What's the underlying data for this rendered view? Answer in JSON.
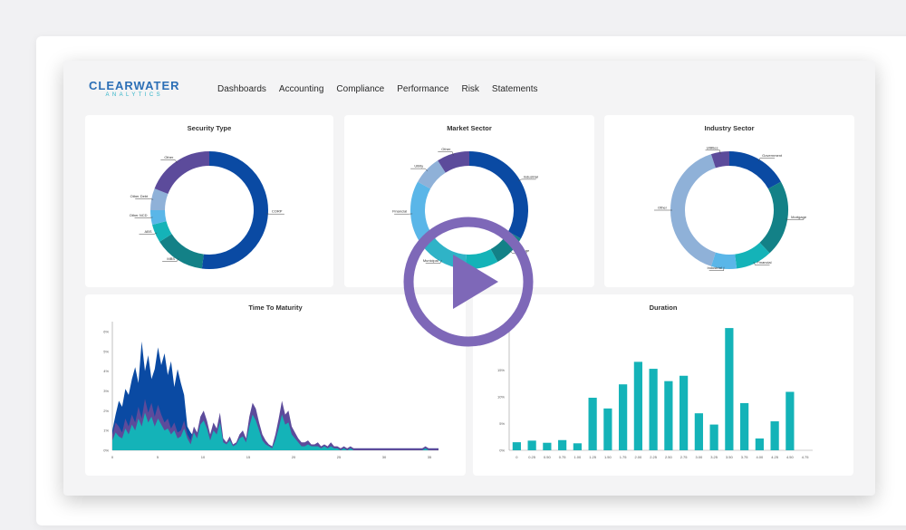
{
  "app": {
    "logo_main": "CLEARWATER",
    "logo_sub": "ANALYTICS"
  },
  "nav": {
    "items": [
      "Dashboards",
      "Accounting",
      "Compliance",
      "Performance",
      "Risk",
      "Statements"
    ]
  },
  "colors": {
    "dark_blue": "#0a4aa3",
    "teal_dark": "#138187",
    "teal": "#14b3b8",
    "light_blue": "#5ab6e8",
    "pale_blue": "#8fb1d8",
    "purple": "#5c4b9b",
    "play": "#7e68b8"
  },
  "chart_data": [
    {
      "type": "pie",
      "title": "Security Type",
      "labels": [
        "CORP",
        "MBS",
        "ABS",
        "Other NCD",
        "Other Debt",
        "Other"
      ],
      "values": [
        52,
        14,
        5,
        4,
        6,
        19
      ],
      "colors": [
        "#0a4aa3",
        "#138187",
        "#14b3b8",
        "#5ab6e8",
        "#8fb1d8",
        "#5c4b9b"
      ]
    },
    {
      "type": "pie",
      "title": "Market Sector",
      "labels": [
        "Industrial",
        "Mortgage",
        "",
        "Municipal",
        "Financial",
        "Utility",
        "Other"
      ],
      "values": [
        33,
        9,
        9,
        14,
        18,
        8,
        9
      ],
      "colors": [
        "#0a4aa3",
        "#138187",
        "#14b3b8",
        "#2fb3c7",
        "#5ab6e8",
        "#8fb1d8",
        "#5c4b9b"
      ]
    },
    {
      "type": "pie",
      "title": "Industry Sector",
      "labels": [
        "Government",
        "Mortgage",
        "Financial",
        "Industrial",
        "Other",
        "Utilities"
      ],
      "values": [
        17,
        21,
        10,
        7,
        40,
        5
      ],
      "colors": [
        "#0a4aa3",
        "#138187",
        "#14b3b8",
        "#5ab6e8",
        "#8fb1d8",
        "#5c4b9b"
      ]
    },
    {
      "type": "area",
      "title": "Time To Maturity",
      "ytick_labels": [
        "0%",
        "1%",
        "2%",
        "3%",
        "4%",
        "5%",
        "6%"
      ],
      "xtick_labels": [
        "0",
        "5",
        "10",
        "15",
        "20",
        "25",
        "30",
        "35"
      ],
      "x": [
        0,
        1,
        2,
        3,
        4,
        5,
        6,
        7,
        8,
        9,
        10,
        11,
        12,
        13,
        14,
        15,
        16,
        17,
        18,
        19,
        20,
        21,
        22,
        23,
        24,
        25,
        26,
        27,
        28,
        29,
        30,
        31,
        32,
        33,
        34,
        35,
        36,
        37,
        38,
        39,
        40,
        41,
        42,
        43,
        44,
        45,
        46,
        47,
        48,
        49,
        50,
        51,
        52,
        53,
        54,
        55,
        56,
        57,
        58,
        59,
        60,
        61,
        62,
        63,
        64,
        65,
        66,
        67,
        68,
        69,
        70,
        71,
        72,
        73,
        74,
        75,
        76,
        77,
        78,
        79,
        80,
        81,
        82,
        83,
        84,
        85,
        86,
        87,
        88,
        89,
        90,
        91,
        92,
        93,
        94,
        95,
        96,
        97,
        98,
        99,
        100
      ],
      "series": [
        {
          "name": "",
          "color": "#0a4aa3",
          "values": [
            1.0,
            1.8,
            2.5,
            2.2,
            3.1,
            2.8,
            3.6,
            4.2,
            3.4,
            5.5,
            4.0,
            4.8,
            3.6,
            4.1,
            5.2,
            4.3,
            4.9,
            3.8,
            4.5,
            3.2,
            4.1,
            3.4,
            2.8,
            1.2,
            0.9,
            0.7,
            0.5,
            0.4,
            0.6,
            0.3,
            0.3,
            0.2,
            0.2,
            0.1,
            0.1,
            0.1,
            0.1,
            0.1,
            0.1,
            0.1,
            0.1,
            0.1,
            0.1,
            0.1,
            0.1,
            0.1,
            0.1,
            0.1,
            0.1,
            0.1,
            0.1,
            0.1,
            0.1,
            0.1,
            0.1,
            0.1,
            0.1,
            0.1,
            0.1,
            0.1,
            0.1,
            0.1,
            0.1,
            0.1,
            0.1,
            0.1,
            0.1,
            0.1,
            0.1,
            0.1,
            0.1,
            0.1,
            0.1,
            0.1,
            0.1,
            0.1,
            0.1,
            0.1,
            0.1,
            0.1,
            0.1,
            0.1,
            0.1,
            0.1,
            0.1,
            0.1,
            0.1,
            0.1,
            0.1,
            0.1,
            0.1,
            0.1,
            0.1,
            0.1,
            0.1,
            0.1,
            0.1,
            0.1,
            0.1,
            0.1,
            0.1
          ]
        },
        {
          "name": "",
          "color": "#5c4b9b",
          "values": [
            0.8,
            1.4,
            1.2,
            0.9,
            1.6,
            1.2,
            1.8,
            1.4,
            2.2,
            1.6,
            2.6,
            1.9,
            2.4,
            1.7,
            2.3,
            1.8,
            1.4,
            1.6,
            1.1,
            1.4,
            0.9,
            1.0,
            1.5,
            0.8,
            0.5,
            1.2,
            0.9,
            1.7,
            2.0,
            1.5,
            0.8,
            1.4,
            1.1,
            1.9,
            0.6,
            0.4,
            0.7,
            0.3,
            0.4,
            0.8,
            1.0,
            0.6,
            1.7,
            2.4,
            2.1,
            1.4,
            0.8,
            0.5,
            0.3,
            0.2,
            0.8,
            1.6,
            2.5,
            1.8,
            2.0,
            1.2,
            0.9,
            0.6,
            0.4,
            0.4,
            0.5,
            0.3,
            0.3,
            0.4,
            0.2,
            0.3,
            0.2,
            0.4,
            0.2,
            0.2,
            0.1,
            0.2,
            0.1,
            0.2,
            0.1,
            0.1,
            0.1,
            0.1,
            0.1,
            0.1,
            0.1,
            0.1,
            0.1,
            0.1,
            0.1,
            0.1,
            0.1,
            0.1,
            0.1,
            0.1,
            0.1,
            0.1,
            0.1,
            0.1,
            0.1,
            0.1,
            0.2,
            0.1,
            0.1,
            0.1,
            0.1
          ]
        },
        {
          "name": "",
          "color": "#14b3b8",
          "values": [
            0.5,
            0.9,
            0.7,
            0.6,
            1.1,
            0.8,
            1.3,
            1.0,
            1.6,
            1.2,
            1.9,
            1.4,
            1.7,
            1.2,
            1.6,
            1.3,
            1.0,
            1.1,
            0.8,
            1.0,
            0.6,
            0.7,
            1.1,
            0.6,
            0.3,
            0.9,
            0.6,
            1.3,
            1.5,
            1.1,
            0.5,
            1.0,
            0.8,
            1.4,
            0.4,
            0.3,
            0.5,
            0.2,
            0.3,
            0.6,
            0.7,
            0.4,
            1.2,
            1.8,
            1.5,
            1.0,
            0.5,
            0.3,
            0.2,
            0.1,
            0.5,
            1.1,
            1.8,
            1.3,
            1.4,
            0.8,
            0.6,
            0.4,
            0.2,
            0.2,
            0.3,
            0.2,
            0.2,
            0.2,
            0.1,
            0.2,
            0.1,
            0.2,
            0.1,
            0.1,
            0.0,
            0.1,
            0.0,
            0.1,
            0.0,
            0.0,
            0.0,
            0.0,
            0.0,
            0.0,
            0.0,
            0.0,
            0.0,
            0.0,
            0.0,
            0.0,
            0.0,
            0.0,
            0.0,
            0.0,
            0.0,
            0.0,
            0.0,
            0.0,
            0.0,
            0.0,
            0.1,
            0.0,
            0.0,
            0.0,
            0.0
          ]
        }
      ],
      "ylim": [
        0,
        6.5
      ]
    },
    {
      "type": "bar",
      "title": "Duration",
      "ytick_labels": [
        "0%",
        "5%",
        "10%",
        "15%"
      ],
      "categories": [
        "0",
        "0.25",
        "0.50",
        "0.75",
        "1.00",
        "1.25",
        "1.50",
        "1.75",
        "2.00",
        "2.25",
        "2.50",
        "2.75",
        "3.00",
        "3.25",
        "3.50",
        "3.75",
        "4.00",
        "4.25",
        "4.50",
        "4.75"
      ],
      "values": [
        1.5,
        1.8,
        1.4,
        1.9,
        1.3,
        9.8,
        7.8,
        12.3,
        16.5,
        15.2,
        12.9,
        13.9,
        6.9,
        4.8,
        22.8,
        8.8,
        2.2,
        5.4,
        10.9,
        0
      ],
      "ylim": [
        0,
        24
      ],
      "color": "#14b3b8"
    }
  ]
}
